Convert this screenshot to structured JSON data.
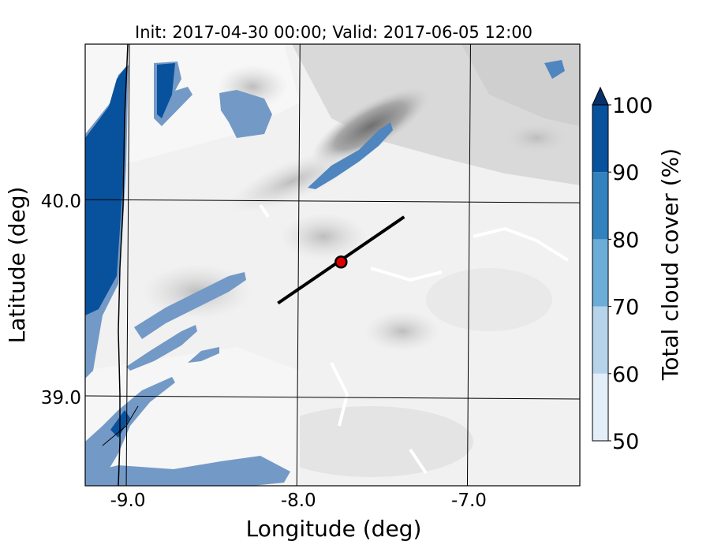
{
  "title": "Init: 2017-04-30 00:00; Valid: 2017-06-05 12:00",
  "map": {
    "xlabel": "Longitude (deg)",
    "ylabel": "Latitude (deg)",
    "x_ticks": [
      "-9.0",
      "-8.0",
      "-7.0"
    ],
    "y_ticks": [
      "40.0",
      "39.0"
    ],
    "xlim": [
      -9.25,
      -6.35
    ],
    "ylim": [
      38.55,
      40.8
    ],
    "transect": {
      "start": [
        -8.12,
        39.48
      ],
      "end": [
        -7.38,
        39.92
      ]
    },
    "marker": {
      "lon": -7.75,
      "lat": 39.69,
      "fill": "#e00000",
      "edge": "#000000"
    }
  },
  "colorbar": {
    "label": "Total cloud cover (%)",
    "levels": [
      50,
      60,
      70,
      80,
      90,
      100
    ],
    "tick_labels": [
      "50",
      "60",
      "70",
      "80",
      "90",
      "100"
    ],
    "colors": [
      "#e3eef8",
      "#b7d3ea",
      "#6badd6",
      "#3282be",
      "#08519c"
    ],
    "extend_color": "#08306b",
    "extend": "max"
  },
  "colors": {
    "terrain_light": "#f2f2f2",
    "terrain_mid": "#d7d7d7",
    "terrain_dark": "#9a9a9a",
    "cloud_mid": "#7399c6",
    "cloud_dark": "#08519c"
  }
}
